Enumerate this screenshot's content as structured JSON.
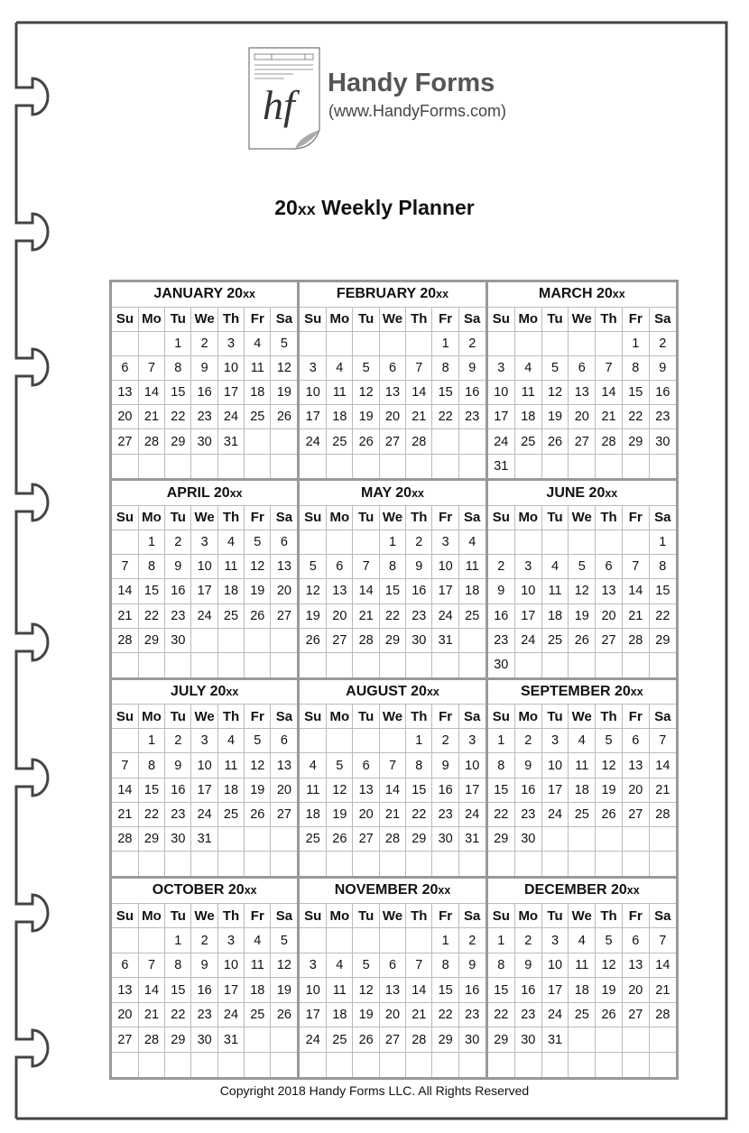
{
  "logo": {
    "monogram": "hf",
    "brand": "Handy Forms",
    "url": "(www.HandyForms.com)"
  },
  "title": {
    "prefix": "20",
    "suffix": "xx",
    "rest": " Weekly Planner"
  },
  "weekdays": [
    "Su",
    "Mo",
    "Tu",
    "We",
    "Th",
    "Fr",
    "Sa"
  ],
  "months": [
    {
      "name": "JANUARY 20",
      "year_suffix": "xx",
      "weeks": [
        [
          null,
          null,
          1,
          2,
          3,
          4,
          5
        ],
        [
          6,
          7,
          8,
          9,
          10,
          11,
          12
        ],
        [
          13,
          14,
          15,
          16,
          17,
          18,
          19
        ],
        [
          20,
          21,
          22,
          23,
          24,
          25,
          26
        ],
        [
          27,
          28,
          29,
          30,
          31,
          null,
          null
        ],
        [
          null,
          null,
          null,
          null,
          null,
          null,
          null
        ]
      ]
    },
    {
      "name": "FEBRUARY 20",
      "year_suffix": "xx",
      "weeks": [
        [
          null,
          null,
          null,
          null,
          null,
          1,
          2
        ],
        [
          3,
          4,
          5,
          6,
          7,
          8,
          9
        ],
        [
          10,
          11,
          12,
          13,
          14,
          15,
          16
        ],
        [
          17,
          18,
          19,
          20,
          21,
          22,
          23
        ],
        [
          24,
          25,
          26,
          27,
          28,
          null,
          null
        ],
        [
          null,
          null,
          null,
          null,
          null,
          null,
          null
        ]
      ]
    },
    {
      "name": "MARCH 20",
      "year_suffix": "xx",
      "weeks": [
        [
          null,
          null,
          null,
          null,
          null,
          1,
          2
        ],
        [
          3,
          4,
          5,
          6,
          7,
          8,
          9
        ],
        [
          10,
          11,
          12,
          13,
          14,
          15,
          16
        ],
        [
          17,
          18,
          19,
          20,
          21,
          22,
          23
        ],
        [
          24,
          25,
          26,
          27,
          28,
          29,
          30
        ],
        [
          31,
          null,
          null,
          null,
          null,
          null,
          null
        ]
      ]
    },
    {
      "name": "APRIL 20",
      "year_suffix": "xx",
      "weeks": [
        [
          null,
          1,
          2,
          3,
          4,
          5,
          6
        ],
        [
          7,
          8,
          9,
          10,
          11,
          12,
          13
        ],
        [
          14,
          15,
          16,
          17,
          18,
          19,
          20
        ],
        [
          21,
          22,
          23,
          24,
          25,
          26,
          27
        ],
        [
          28,
          29,
          30,
          null,
          null,
          null,
          null
        ],
        [
          null,
          null,
          null,
          null,
          null,
          null,
          null
        ]
      ]
    },
    {
      "name": "MAY 20",
      "year_suffix": "xx",
      "weeks": [
        [
          null,
          null,
          null,
          1,
          2,
          3,
          4
        ],
        [
          5,
          6,
          7,
          8,
          9,
          10,
          11
        ],
        [
          12,
          13,
          14,
          15,
          16,
          17,
          18
        ],
        [
          19,
          20,
          21,
          22,
          23,
          24,
          25
        ],
        [
          26,
          27,
          28,
          29,
          30,
          31,
          null
        ],
        [
          null,
          null,
          null,
          null,
          null,
          null,
          null
        ]
      ]
    },
    {
      "name": "JUNE 20",
      "year_suffix": "xx",
      "weeks": [
        [
          null,
          null,
          null,
          null,
          null,
          null,
          1
        ],
        [
          2,
          3,
          4,
          5,
          6,
          7,
          8
        ],
        [
          9,
          10,
          11,
          12,
          13,
          14,
          15
        ],
        [
          16,
          17,
          18,
          19,
          20,
          21,
          22
        ],
        [
          23,
          24,
          25,
          26,
          27,
          28,
          29
        ],
        [
          30,
          null,
          null,
          null,
          null,
          null,
          null
        ]
      ]
    },
    {
      "name": "JULY 20",
      "year_suffix": "xx",
      "weeks": [
        [
          null,
          1,
          2,
          3,
          4,
          5,
          6
        ],
        [
          7,
          8,
          9,
          10,
          11,
          12,
          13
        ],
        [
          14,
          15,
          16,
          17,
          18,
          19,
          20
        ],
        [
          21,
          22,
          23,
          24,
          25,
          26,
          27
        ],
        [
          28,
          29,
          30,
          31,
          null,
          null,
          null
        ],
        [
          null,
          null,
          null,
          null,
          null,
          null,
          null
        ]
      ]
    },
    {
      "name": "AUGUST 20",
      "year_suffix": "xx",
      "weeks": [
        [
          null,
          null,
          null,
          null,
          1,
          2,
          3
        ],
        [
          4,
          5,
          6,
          7,
          8,
          9,
          10
        ],
        [
          11,
          12,
          13,
          14,
          15,
          16,
          17
        ],
        [
          18,
          19,
          20,
          21,
          22,
          23,
          24
        ],
        [
          25,
          26,
          27,
          28,
          29,
          30,
          31
        ],
        [
          null,
          null,
          null,
          null,
          null,
          null,
          null
        ]
      ]
    },
    {
      "name": "SEPTEMBER 20",
      "year_suffix": "xx",
      "weeks": [
        [
          1,
          2,
          3,
          4,
          5,
          6,
          7
        ],
        [
          8,
          9,
          10,
          11,
          12,
          13,
          14
        ],
        [
          15,
          16,
          17,
          18,
          19,
          20,
          21
        ],
        [
          22,
          23,
          24,
          25,
          26,
          27,
          28
        ],
        [
          29,
          30,
          null,
          null,
          null,
          null,
          null
        ],
        [
          null,
          null,
          null,
          null,
          null,
          null,
          null
        ]
      ]
    },
    {
      "name": "OCTOBER 20",
      "year_suffix": "xx",
      "weeks": [
        [
          null,
          null,
          1,
          2,
          3,
          4,
          5
        ],
        [
          6,
          7,
          8,
          9,
          10,
          11,
          12
        ],
        [
          13,
          14,
          15,
          16,
          17,
          18,
          19
        ],
        [
          20,
          21,
          22,
          23,
          24,
          25,
          26
        ],
        [
          27,
          28,
          29,
          30,
          31,
          null,
          null
        ],
        [
          null,
          null,
          null,
          null,
          null,
          null,
          null
        ]
      ]
    },
    {
      "name": "NOVEMBER 20",
      "year_suffix": "xx",
      "weeks": [
        [
          null,
          null,
          null,
          null,
          null,
          1,
          2
        ],
        [
          3,
          4,
          5,
          6,
          7,
          8,
          9
        ],
        [
          10,
          11,
          12,
          13,
          14,
          15,
          16
        ],
        [
          17,
          18,
          19,
          20,
          21,
          22,
          23
        ],
        [
          24,
          25,
          26,
          27,
          28,
          29,
          30
        ],
        [
          null,
          null,
          null,
          null,
          null,
          null,
          null
        ]
      ]
    },
    {
      "name": "DECEMBER 20",
      "year_suffix": "xx",
      "weeks": [
        [
          1,
          2,
          3,
          4,
          5,
          6,
          7
        ],
        [
          8,
          9,
          10,
          11,
          12,
          13,
          14
        ],
        [
          15,
          16,
          17,
          18,
          19,
          20,
          21
        ],
        [
          22,
          23,
          24,
          25,
          26,
          27,
          28
        ],
        [
          29,
          30,
          31,
          null,
          null,
          null,
          null
        ],
        [
          null,
          null,
          null,
          null,
          null,
          null,
          null
        ]
      ]
    }
  ],
  "copyright": "Copyright 2018 Handy Forms LLC. All Rights Reserved",
  "colors": {
    "frame": "#444444",
    "grid_border": "#999999",
    "cell_line": "#bbbbbb",
    "brand": "#555555"
  }
}
